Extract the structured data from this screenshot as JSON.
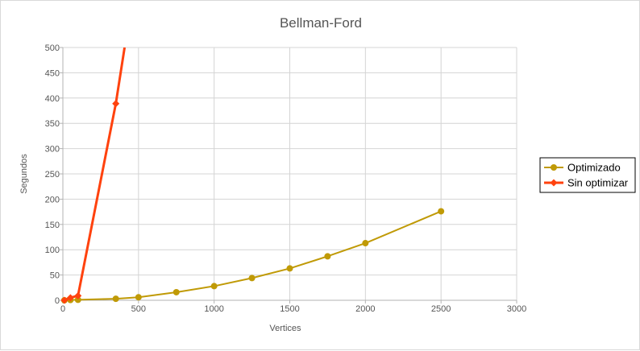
{
  "chart_data": {
    "type": "line",
    "title": "Bellman-Ford",
    "xlabel": "Vertices",
    "ylabel": "Segundos",
    "xlim": [
      0,
      3000
    ],
    "ylim": [
      0,
      500
    ],
    "x_ticks": [
      0,
      500,
      1000,
      1500,
      2000,
      2500,
      3000
    ],
    "y_ticks": [
      0,
      50,
      100,
      150,
      200,
      250,
      300,
      350,
      400,
      450,
      500
    ],
    "grid": true,
    "legend_position": "right",
    "series": [
      {
        "name": "Optimizado",
        "color": "#c09a06",
        "marker": "circle",
        "x": [
          10,
          50,
          100,
          350,
          500,
          750,
          1000,
          1250,
          1500,
          1750,
          2000,
          2500
        ],
        "y": [
          0,
          0.5,
          1,
          3,
          6,
          16,
          28,
          44,
          63,
          87,
          113,
          176
        ]
      },
      {
        "name": "Sin optimizar",
        "color": "#ff420e",
        "marker": "diamond",
        "x": [
          10,
          50,
          100,
          350,
          408
        ],
        "y": [
          0,
          5,
          9,
          389,
          500
        ]
      }
    ]
  }
}
